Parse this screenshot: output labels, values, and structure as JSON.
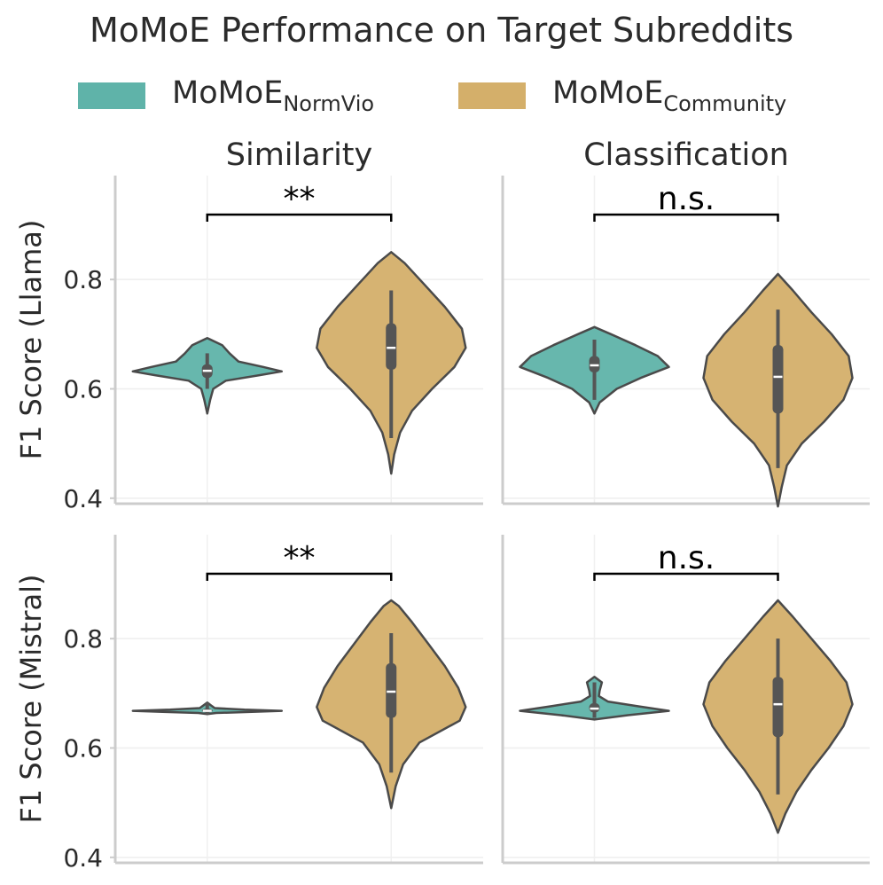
{
  "title": "MoMoE Performance on Target Subreddits",
  "colors": {
    "normvio": "#5fb3a9",
    "community": "#d4af6a",
    "outline": "#4a4a4a",
    "box": "#555555"
  },
  "legend": [
    {
      "base": "MoMoE",
      "sub": "NormVio",
      "color": "#5fb3a9"
    },
    {
      "base": "MoMoE",
      "sub": "Community",
      "color": "#d4af6a"
    }
  ],
  "chart_data": {
    "type": "violin",
    "groups": [
      "MoMoE_NormVio",
      "MoMoE_Community"
    ],
    "columns": [
      "Similarity",
      "Classification"
    ],
    "rows": [
      "F1 Score (Llama)",
      "F1 Score (Mistral)"
    ],
    "ylim": [
      0.39,
      0.99
    ],
    "yticks": [
      0.4,
      0.6,
      0.8
    ],
    "ytick_labels": [
      "0.4",
      "0.6",
      "0.8"
    ],
    "panels": [
      {
        "row": "F1 Score (Llama)",
        "column": "Similarity",
        "significance": "**",
        "violins": [
          {
            "group": "MoMoE_NormVio",
            "min": 0.555,
            "max": 0.693,
            "q1": 0.62,
            "median": 0.633,
            "q3": 0.645,
            "whisker_low": 0.6,
            "whisker_high": 0.665,
            "profile": [
              [
                0.555,
                0.0
              ],
              [
                0.58,
                0.04
              ],
              [
                0.6,
                0.08
              ],
              [
                0.615,
                0.25
              ],
              [
                0.625,
                0.7
              ],
              [
                0.632,
                1.0
              ],
              [
                0.64,
                0.75
              ],
              [
                0.65,
                0.42
              ],
              [
                0.665,
                0.3
              ],
              [
                0.68,
                0.2
              ],
              [
                0.693,
                0.0
              ]
            ]
          },
          {
            "group": "MoMoE_Community",
            "min": 0.445,
            "max": 0.85,
            "q1": 0.635,
            "median": 0.675,
            "q3": 0.72,
            "whisker_low": 0.51,
            "whisker_high": 0.78,
            "profile": [
              [
                0.445,
                0.0
              ],
              [
                0.48,
                0.04
              ],
              [
                0.52,
                0.12
              ],
              [
                0.56,
                0.28
              ],
              [
                0.6,
                0.55
              ],
              [
                0.64,
                0.85
              ],
              [
                0.675,
                1.0
              ],
              [
                0.71,
                0.95
              ],
              [
                0.75,
                0.72
              ],
              [
                0.79,
                0.45
              ],
              [
                0.83,
                0.18
              ],
              [
                0.85,
                0.0
              ]
            ]
          }
        ]
      },
      {
        "row": "F1 Score (Llama)",
        "column": "Classification",
        "significance": "n.s.",
        "violins": [
          {
            "group": "MoMoE_NormVio",
            "min": 0.555,
            "max": 0.713,
            "q1": 0.63,
            "median": 0.643,
            "q3": 0.66,
            "whisker_low": 0.58,
            "whisker_high": 0.69,
            "profile": [
              [
                0.555,
                0.0
              ],
              [
                0.575,
                0.07
              ],
              [
                0.6,
                0.3
              ],
              [
                0.62,
                0.62
              ],
              [
                0.64,
                1.0
              ],
              [
                0.66,
                0.85
              ],
              [
                0.68,
                0.55
              ],
              [
                0.7,
                0.22
              ],
              [
                0.713,
                0.0
              ]
            ]
          },
          {
            "group": "MoMoE_Community",
            "min": 0.385,
            "max": 0.81,
            "q1": 0.555,
            "median": 0.622,
            "q3": 0.68,
            "whisker_low": 0.455,
            "whisker_high": 0.745,
            "profile": [
              [
                0.385,
                0.0
              ],
              [
                0.42,
                0.05
              ],
              [
                0.46,
                0.12
              ],
              [
                0.5,
                0.32
              ],
              [
                0.54,
                0.62
              ],
              [
                0.58,
                0.88
              ],
              [
                0.62,
                1.0
              ],
              [
                0.66,
                0.95
              ],
              [
                0.7,
                0.72
              ],
              [
                0.74,
                0.45
              ],
              [
                0.78,
                0.2
              ],
              [
                0.81,
                0.0
              ]
            ]
          }
        ]
      },
      {
        "row": "F1 Score (Mistral)",
        "column": "Similarity",
        "significance": "**",
        "violins": [
          {
            "group": "MoMoE_NormVio",
            "min": 0.662,
            "max": 0.683,
            "q1": 0.665,
            "median": 0.668,
            "q3": 0.672,
            "whisker_low": 0.662,
            "whisker_high": 0.683,
            "profile": [
              [
                0.662,
                0.0
              ],
              [
                0.664,
                0.12
              ],
              [
                0.666,
                0.6
              ],
              [
                0.668,
                1.0
              ],
              [
                0.67,
                0.5
              ],
              [
                0.673,
                0.1
              ],
              [
                0.678,
                0.05
              ],
              [
                0.683,
                0.0
              ]
            ]
          },
          {
            "group": "MoMoE_Community",
            "min": 0.49,
            "max": 0.87,
            "q1": 0.655,
            "median": 0.703,
            "q3": 0.755,
            "whisker_low": 0.555,
            "whisker_high": 0.81,
            "profile": [
              [
                0.49,
                0.0
              ],
              [
                0.53,
                0.06
              ],
              [
                0.57,
                0.16
              ],
              [
                0.61,
                0.38
              ],
              [
                0.65,
                0.92
              ],
              [
                0.675,
                1.0
              ],
              [
                0.71,
                0.9
              ],
              [
                0.75,
                0.72
              ],
              [
                0.79,
                0.5
              ],
              [
                0.83,
                0.28
              ],
              [
                0.86,
                0.1
              ],
              [
                0.87,
                0.0
              ]
            ]
          }
        ]
      },
      {
        "row": "F1 Score (Mistral)",
        "column": "Classification",
        "significance": "n.s.",
        "violins": [
          {
            "group": "MoMoE_NormVio",
            "min": 0.652,
            "max": 0.73,
            "q1": 0.665,
            "median": 0.672,
            "q3": 0.682,
            "whisker_low": 0.655,
            "whisker_high": 0.72,
            "profile": [
              [
                0.652,
                0.0
              ],
              [
                0.66,
                0.45
              ],
              [
                0.668,
                1.0
              ],
              [
                0.676,
                0.6
              ],
              [
                0.685,
                0.18
              ],
              [
                0.695,
                0.06
              ],
              [
                0.705,
                0.07
              ],
              [
                0.72,
                0.1
              ],
              [
                0.73,
                0.0
              ]
            ]
          },
          {
            "group": "MoMoE_Community",
            "min": 0.445,
            "max": 0.87,
            "q1": 0.62,
            "median": 0.68,
            "q3": 0.73,
            "whisker_low": 0.515,
            "whisker_high": 0.8,
            "profile": [
              [
                0.445,
                0.0
              ],
              [
                0.48,
                0.1
              ],
              [
                0.52,
                0.25
              ],
              [
                0.56,
                0.45
              ],
              [
                0.6,
                0.68
              ],
              [
                0.64,
                0.88
              ],
              [
                0.68,
                1.0
              ],
              [
                0.72,
                0.92
              ],
              [
                0.76,
                0.7
              ],
              [
                0.8,
                0.45
              ],
              [
                0.84,
                0.2
              ],
              [
                0.87,
                0.0
              ]
            ]
          }
        ]
      }
    ]
  }
}
